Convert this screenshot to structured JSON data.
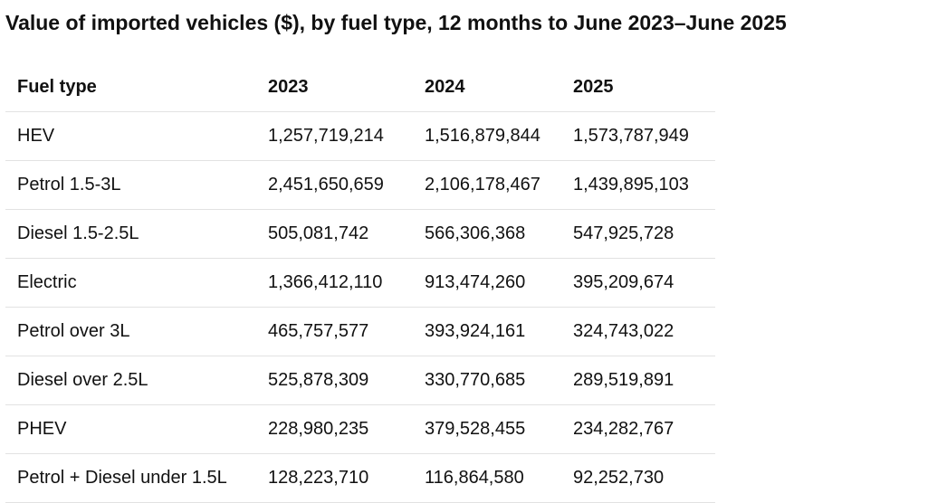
{
  "chart_data": {
    "type": "table",
    "title": "Value of imported vehicles ($), by fuel type, 12 months to June 2023–June 2025",
    "columns": [
      "Fuel type",
      "2023",
      "2024",
      "2025"
    ],
    "rows": [
      {
        "fuel": "HEV",
        "values": [
          "1,257,719,214",
          "1,516,879,844",
          "1,573,787,949"
        ]
      },
      {
        "fuel": "Petrol 1.5-3L",
        "values": [
          "2,451,650,659",
          "2,106,178,467",
          "1,439,895,103"
        ]
      },
      {
        "fuel": "Diesel 1.5-2.5L",
        "values": [
          "505,081,742",
          "566,306,368",
          "547,925,728"
        ]
      },
      {
        "fuel": "Electric",
        "values": [
          "1,366,412,110",
          "913,474,260",
          "395,209,674"
        ]
      },
      {
        "fuel": "Petrol over 3L",
        "values": [
          "465,757,577",
          "393,924,161",
          "324,743,022"
        ]
      },
      {
        "fuel": "Diesel over 2.5L",
        "values": [
          "525,878,309",
          "330,770,685",
          "289,519,891"
        ]
      },
      {
        "fuel": "PHEV",
        "values": [
          "228,980,235",
          "379,528,455",
          "234,282,767"
        ]
      },
      {
        "fuel": "Petrol + Diesel under 1.5L",
        "values": [
          "128,223,710",
          "116,864,580",
          "92,252,730"
        ]
      }
    ]
  }
}
